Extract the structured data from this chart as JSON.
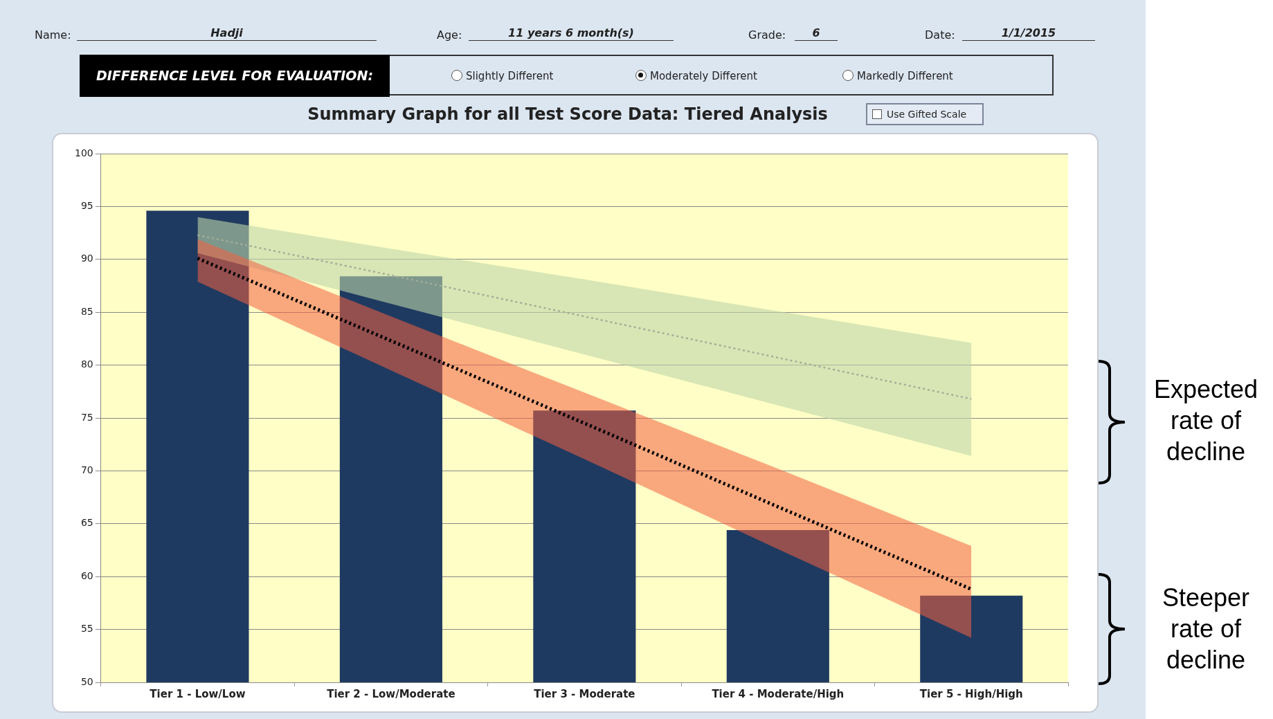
{
  "chart_data": {
    "type": "bar",
    "title": "Summary Graph for all Test Score Data: Tiered Analysis",
    "categories": [
      "Tier 1 - Low/Low",
      "Tier 2 - Low/Moderate",
      "Tier 3 - Moderate",
      "Tier 4 - Moderate/High",
      "Tier 5 - High/High"
    ],
    "series": [
      {
        "color": "#1f3a60",
        "values": [
          94.6,
          88.4,
          75.7,
          64.4,
          58.2
        ]
      },
      {
        "type": "line",
        "color": "#000000",
        "line_style": "dotted",
        "values": [
          90.1,
          82.3,
          74.5,
          66.6,
          58.8
        ],
        "lower": [
          87.9,
          79.5,
          71.1,
          62.6,
          54.2
        ],
        "upper": [
          91.9,
          84.6,
          77.4,
          70.2,
          62.9
        ]
      },
      {
        "type": "line",
        "color": "#a3ad98",
        "line_style": "dotted",
        "values": [
          92.3,
          88.5,
          84.6,
          80.7,
          76.8
        ],
        "lower": [
          90.6,
          85.8,
          81.0,
          76.2,
          71.4
        ],
        "upper": [
          94.0,
          91.0,
          88.1,
          85.1,
          82.1
        ]
      }
    ],
    "ylim": [
      50,
      100
    ],
    "yticks": [
      50,
      55,
      60,
      65,
      70,
      75,
      80,
      85,
      90,
      95,
      100
    ],
    "grid": "y",
    "legend": false,
    "marker": "none",
    "annotations": [
      "Name:",
      "Hadji",
      "Age:",
      "11 years 6 month(s)",
      "Grade:",
      "6",
      "Date:",
      "1/1/2015",
      "DIFFERENCE LEVEL FOR EVALUATION:",
      "Slightly Different",
      "Moderately Different",
      "Markedly Different",
      "Use Gifted Scale",
      "Expected rate of decline",
      "Steeper rate of decline"
    ]
  }
}
